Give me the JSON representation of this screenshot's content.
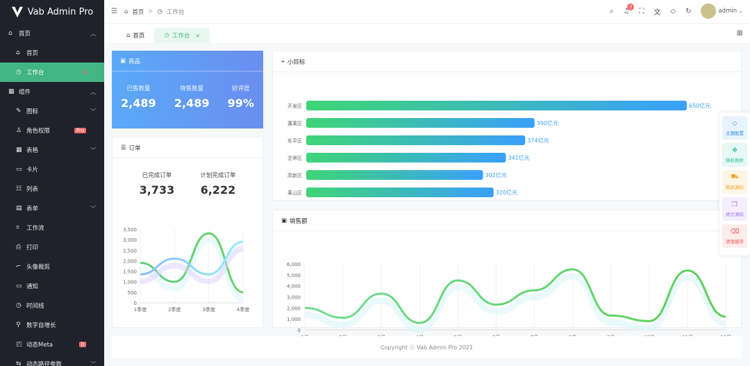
{
  "app": {
    "title": "Vab Admin Pro"
  },
  "sidebar": {
    "items": [
      {
        "label": "首页",
        "icon": "home-icon",
        "level": 1,
        "chevron": "up"
      },
      {
        "label": "首页",
        "icon": "home-icon",
        "level": 2
      },
      {
        "label": "工作台",
        "icon": "clock-icon",
        "level": 2,
        "active": true,
        "dot": true
      },
      {
        "label": "组件",
        "icon": "component-icon",
        "level": 1,
        "chevron": "up"
      },
      {
        "label": "图标",
        "icon": "icon-icon",
        "level": 2,
        "chevron": "down"
      },
      {
        "label": "角色权限",
        "icon": "user-icon",
        "level": 2,
        "badge": "Pro"
      },
      {
        "label": "表格",
        "icon": "table-icon",
        "level": 2,
        "chevron": "down"
      },
      {
        "label": "卡片",
        "icon": "card-icon",
        "level": 2
      },
      {
        "label": "列表",
        "icon": "list-icon",
        "level": 2
      },
      {
        "label": "表单",
        "icon": "form-icon",
        "level": 2,
        "chevron": "down"
      },
      {
        "label": "工作流",
        "icon": "flow-icon",
        "level": 2
      },
      {
        "label": "打印",
        "icon": "printer-icon",
        "level": 2
      },
      {
        "label": "头像裁剪",
        "icon": "crop-icon",
        "level": 2
      },
      {
        "label": "通知",
        "icon": "notice-icon",
        "level": 2
      },
      {
        "label": "时间线",
        "icon": "clock-icon",
        "level": 2
      },
      {
        "label": "数字自增长",
        "icon": "pin-icon",
        "level": 2
      },
      {
        "label": "动态Meta",
        "icon": "meta-icon",
        "level": 2,
        "badge": "0"
      },
      {
        "label": "动态路径参数",
        "icon": "route-icon",
        "level": 2,
        "chevron": "down"
      }
    ]
  },
  "header": {
    "breadcrumb": [
      "首页",
      "工作台"
    ],
    "notifications": "7",
    "user": "admin"
  },
  "tabs": [
    {
      "label": "首页",
      "active": false
    },
    {
      "label": "工作台",
      "active": true
    }
  ],
  "goods": {
    "title": "商品",
    "stats": [
      {
        "label": "已售数量",
        "value": "2,489"
      },
      {
        "label": "待售数量",
        "value": "2,489"
      },
      {
        "label": "好评度",
        "value": "99%"
      }
    ]
  },
  "orders": {
    "title": "订单",
    "stats": [
      {
        "label": "已完成订单",
        "value": "3,733"
      },
      {
        "label": "计划完成订单",
        "value": "6,222"
      }
    ]
  },
  "target": {
    "title": "小目标"
  },
  "sales": {
    "title": "销售额"
  },
  "footer": {
    "text": "Copyright ⓒ Vab Admin Pro 2021"
  },
  "panel": [
    {
      "label": "主题配置",
      "color": "#3a8ee6",
      "bg": "#e8f3fe"
    },
    {
      "label": "随机换肤",
      "color": "#2fbfa0",
      "bg": "#e6f8f3"
    },
    {
      "label": "购买源码",
      "color": "#f0a020",
      "bg": "#fef5e6"
    },
    {
      "label": "拷贝源码",
      "color": "#a070f0",
      "bg": "#f4effe"
    },
    {
      "label": "清理缓存",
      "color": "#f05a5a",
      "bg": "#feecec"
    }
  ],
  "colors": {
    "accent": "#41b584",
    "sidebar": "#1f222a"
  },
  "chart_data": [
    {
      "type": "line",
      "categories": [
        "1季度",
        "2季度",
        "3季度",
        "4季度"
      ],
      "ylim": [
        0,
        3500
      ],
      "yticks": [
        0,
        500,
        1000,
        1500,
        2000,
        2500,
        3000,
        3500
      ],
      "series": [
        {
          "values": [
            1900,
            1000,
            3300,
            500
          ],
          "color": "#5ccf7d"
        },
        {
          "values": [
            1350,
            2100,
            1350,
            2900
          ],
          "color": "#8ab8ff"
        }
      ]
    },
    {
      "type": "bar",
      "orientation": "horizontal",
      "categories": [
        "开发区",
        "蓬莱区",
        "牟平区",
        "芝罘区",
        "高新区",
        "莱山区"
      ],
      "values": [
        650,
        390,
        374,
        341,
        302,
        320
      ],
      "unit": "亿元",
      "labels": [
        "650亿元",
        "390亿元",
        "374亿元",
        "341亿元",
        "302亿元",
        "320亿元"
      ]
    },
    {
      "type": "line",
      "categories": [
        "1月",
        "2月",
        "3月",
        "4月",
        "5月",
        "6月",
        "7月",
        "8月",
        "9月",
        "10月",
        "11月",
        "12月"
      ],
      "ylim": [
        0,
        6000
      ],
      "yticks": [
        0,
        1000,
        2000,
        3000,
        4000,
        5000,
        6000
      ],
      "values": [
        2000,
        1100,
        3300,
        630,
        4500,
        2300,
        3600,
        5500,
        1300,
        800,
        5400,
        1200
      ]
    }
  ]
}
